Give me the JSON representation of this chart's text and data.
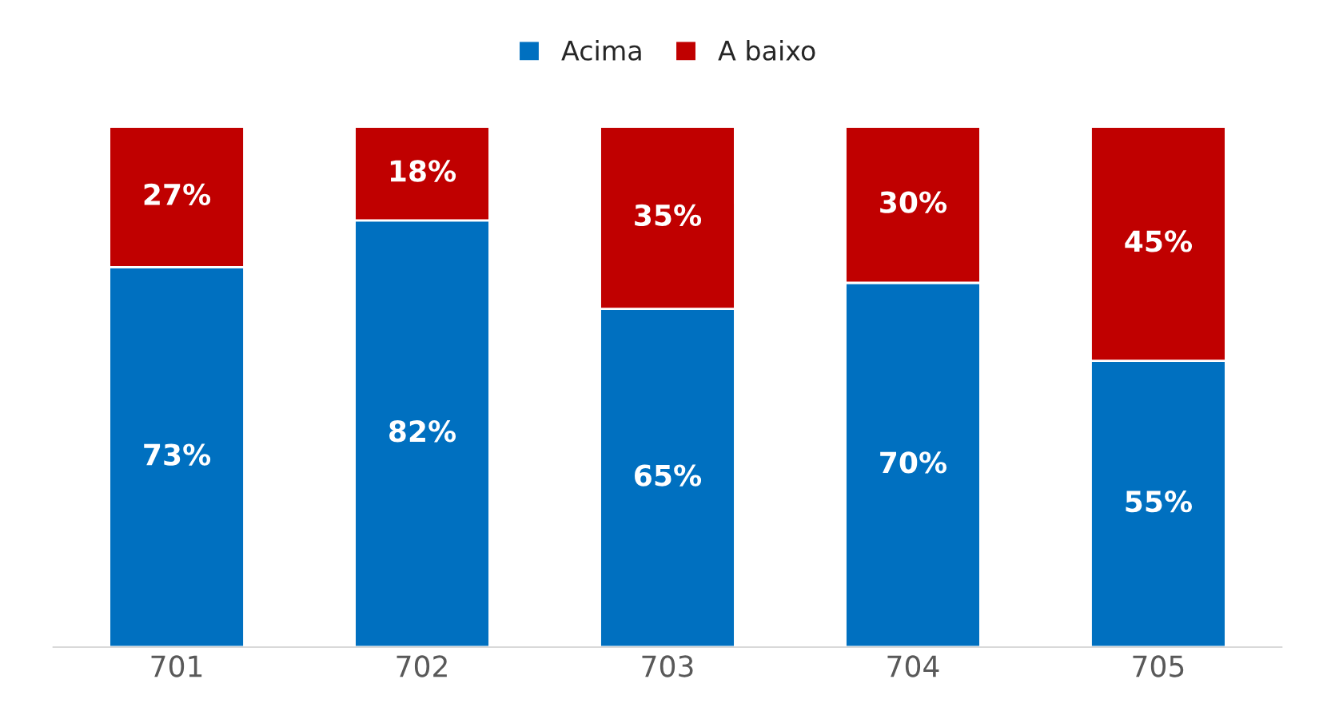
{
  "chart_data": {
    "type": "bar",
    "stacked": true,
    "categories": [
      "701",
      "702",
      "703",
      "704",
      "705"
    ],
    "series": [
      {
        "name": "Acima",
        "color": "#0070c0",
        "values": [
          73,
          82,
          65,
          70,
          55
        ],
        "value_labels": [
          "73%",
          "82%",
          "65%",
          "70%",
          "55%"
        ]
      },
      {
        "name": "A baixo",
        "color": "#c00000",
        "values": [
          27,
          18,
          35,
          30,
          45
        ],
        "value_labels": [
          "27%",
          "18%",
          "35%",
          "30%",
          "45%"
        ]
      }
    ],
    "legend": "top",
    "grid": false,
    "tick_labels": "x"
  }
}
